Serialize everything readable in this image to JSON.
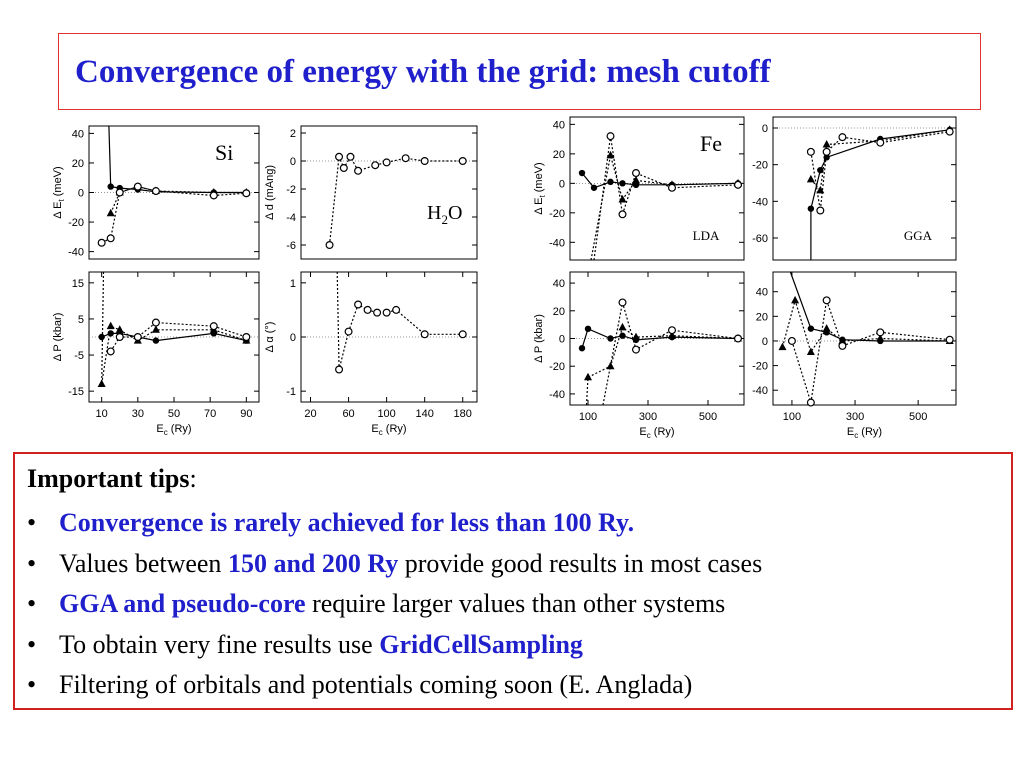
{
  "title": "Convergence of energy with the grid: mesh cutoff",
  "figure": {
    "panels": [
      {
        "id": "si-energy",
        "tag": "Si",
        "ylabel": "Δ E_t (meV)",
        "xlabel": "",
        "ylim": [
          -45,
          45
        ],
        "yticks": [
          -40,
          -20,
          0,
          20,
          40
        ],
        "xlim": [
          3,
          97
        ],
        "xticks": [],
        "series": [
          {
            "style": "solid-dot",
            "x": [
              15,
              20,
              30,
              40,
              72,
              90
            ],
            "y": [
              4,
              3,
              2,
              0.5,
              0,
              0
            ],
            "pre": [
              [
                14,
                45
              ]
            ]
          },
          {
            "style": "dotted-triangle",
            "x": [
              15,
              20,
              30,
              40,
              72,
              90
            ],
            "y": [
              -14,
              0,
              4,
              1,
              0,
              0
            ]
          },
          {
            "style": "dotted-circle",
            "x": [
              10,
              15,
              20,
              30,
              40,
              72,
              90
            ],
            "y": [
              -34,
              -31,
              0,
              4,
              1,
              -2,
              -0.5
            ]
          }
        ]
      },
      {
        "id": "h2o-distance",
        "tag": "H2O",
        "ylabel": "Δ d (mAng)",
        "xlabel": "",
        "ylim": [
          -7,
          2.5
        ],
        "yticks": [
          -6,
          -4,
          -2,
          0,
          2
        ],
        "xlim": [
          10,
          195
        ],
        "xticks": [],
        "series": [
          {
            "style": "dotted-circle",
            "x": [
              40,
              50,
              55,
              62,
              70,
              88,
              100,
              120,
              140,
              180
            ],
            "y": [
              -6,
              0.3,
              -0.5,
              0.3,
              -0.7,
              -0.3,
              -0.1,
              0.2,
              0,
              0
            ]
          }
        ]
      },
      {
        "id": "si-pressure",
        "tag": "",
        "ylabel": "Δ P (kbar)",
        "xlabel": "E_c (Ry)",
        "ylim": [
          -18,
          18
        ],
        "yticks": [
          -15,
          -5,
          5,
          15
        ],
        "xlim": [
          3,
          97
        ],
        "xticks": [
          10,
          30,
          50,
          70,
          90
        ],
        "series": [
          {
            "style": "solid-dot",
            "x": [
              10,
              15,
              20,
              30,
              40,
              72,
              90
            ],
            "y": [
              0,
              1,
              1,
              0,
              -1,
              1,
              -1
            ]
          },
          {
            "style": "dotted-triangle",
            "x": [
              10,
              15,
              20,
              30,
              40,
              72,
              90
            ],
            "y": [
              -13,
              3,
              2,
              -1,
              2,
              2,
              -1
            ],
            "pre": [
              [
                11,
                18
              ]
            ]
          },
          {
            "style": "dotted-circle",
            "x": [
              15,
              20,
              30,
              40,
              72,
              90
            ],
            "y": [
              -4,
              0,
              0,
              4,
              3,
              0
            ]
          }
        ]
      },
      {
        "id": "h2o-angle",
        "tag": "",
        "ylabel": "Δ α (°)",
        "xlabel": "E_c (Ry)",
        "ylim": [
          -1.2,
          1.2
        ],
        "yticks": [
          -1,
          0,
          1
        ],
        "xlim": [
          10,
          195
        ],
        "xticks": [
          20,
          60,
          100,
          140,
          180
        ],
        "series": [
          {
            "style": "dotted-circle",
            "x": [
              50,
              60,
              70,
              80,
              90,
              100,
              110,
              140,
              180
            ],
            "y": [
              -0.6,
              0.1,
              0.6,
              0.5,
              0.45,
              0.45,
              0.5,
              0.05,
              0.05
            ],
            "pre": [
              [
                48,
                1.2
              ]
            ]
          }
        ]
      },
      {
        "id": "fe-lda-energy",
        "tag": "Fe",
        "sub": "LDA",
        "ylabel": "Δ E_t (meV)",
        "xlabel": "",
        "ylim": [
          -52,
          45
        ],
        "yticks": [
          -40,
          -20,
          0,
          20,
          40
        ],
        "xlim": [
          40,
          620
        ],
        "xticks": [],
        "series": [
          {
            "style": "solid-dot",
            "x": [
              80,
              120,
              175,
              215,
              260,
              380,
              600
            ],
            "y": [
              7,
              -3,
              1,
              0,
              -1,
              -1,
              0
            ]
          },
          {
            "style": "dotted-triangle",
            "x": [
              175,
              215,
              260,
              380,
              600
            ],
            "y": [
              19,
              -11,
              2,
              -1,
              0
            ],
            "pre": [
              [
                110,
                -52
              ]
            ]
          },
          {
            "style": "dotted-circle",
            "x": [
              175,
              215,
              260,
              380,
              600
            ],
            "y": [
              32,
              -21,
              7,
              -3,
              -1
            ],
            "pre": [
              [
                120,
                -52
              ]
            ]
          }
        ]
      },
      {
        "id": "fe-gga-energy",
        "tag": "",
        "sub": "GGA",
        "ylabel": "",
        "xlabel": "",
        "ylim": [
          -72,
          6
        ],
        "yticks": [
          -60,
          -40,
          -20,
          0
        ],
        "xlim": [
          40,
          620
        ],
        "xticks": [],
        "series": [
          {
            "style": "solid-dot",
            "x": [
              160,
              190,
              210,
              380,
              600
            ],
            "y": [
              -44,
              -23,
              -16,
              -6,
              -1
            ],
            "pre": [
              [
                160,
                -72
              ]
            ]
          },
          {
            "style": "dotted-triangle",
            "x": [
              160,
              190,
              210,
              380,
              600
            ],
            "y": [
              -28,
              -34,
              -9,
              -7,
              -1
            ]
          },
          {
            "style": "dotted-circle",
            "x": [
              160,
              190,
              210,
              260,
              380,
              600
            ],
            "y": [
              -13,
              -45,
              -13,
              -5,
              -8,
              -2
            ]
          }
        ]
      },
      {
        "id": "fe-lda-pressure",
        "tag": "",
        "ylabel": "Δ P (kbar)",
        "xlabel": "E_c (Ry)",
        "ylim": [
          -48,
          48
        ],
        "yticks": [
          -40,
          -20,
          0,
          20,
          40
        ],
        "xlim": [
          40,
          620
        ],
        "xticks": [
          100,
          300,
          500
        ],
        "series": [
          {
            "style": "solid-dot",
            "x": [
              80,
              100,
              175,
              215,
              260,
              380,
              600
            ],
            "y": [
              -7,
              7,
              0,
              2,
              -1,
              1,
              0
            ]
          },
          {
            "style": "dotted-triangle",
            "x": [
              100,
              175,
              215,
              260,
              380,
              600
            ],
            "y": [
              -28,
              -20,
              8,
              1,
              2,
              0
            ],
            "pre": [
              [
                95,
                -48
              ]
            ]
          },
          {
            "style": "dotted-circle",
            "x": [
              215,
              260,
              380,
              600
            ],
            "y": [
              26,
              -8,
              6,
              0
            ],
            "pre": [
              [
                150,
                -48
              ]
            ]
          }
        ]
      },
      {
        "id": "fe-gga-pressure",
        "tag": "",
        "ylabel": "",
        "xlabel": "E_c (Ry)",
        "ylim": [
          -52,
          56
        ],
        "yticks": [
          -40,
          -20,
          0,
          20,
          40
        ],
        "xlim": [
          40,
          620
        ],
        "xticks": [
          100,
          300,
          500
        ],
        "series": [
          {
            "style": "solid-dot",
            "x": [
              160,
              210,
              260,
              380,
              600
            ],
            "y": [
              10,
              7,
              1,
              0,
              0
            ],
            "pre": [
              [
                95,
                56
              ]
            ]
          },
          {
            "style": "dotted-triangle",
            "x": [
              70,
              110,
              160,
              210,
              260,
              380,
              600
            ],
            "y": [
              -5,
              33,
              -9,
              10,
              0,
              2,
              0
            ]
          },
          {
            "style": "dotted-circle",
            "x": [
              100,
              160,
              210,
              260,
              380,
              600
            ],
            "y": [
              0,
              -50,
              33,
              -4,
              7,
              1
            ]
          }
        ]
      }
    ]
  },
  "tips": {
    "heading": "Important tips",
    "heading_suffix": ":",
    "bullet": "•",
    "items": [
      {
        "segments": [
          {
            "text": "Convergence is rarely achieved for less than 100 Ry.",
            "hl": true
          }
        ]
      },
      {
        "segments": [
          {
            "text": "Values between ",
            "hl": false
          },
          {
            "text": "150 and 200 Ry",
            "hl": true
          },
          {
            "text": " provide good results in most cases",
            "hl": false
          }
        ]
      },
      {
        "segments": [
          {
            "text": "GGA and pseudo-core",
            "hl": true
          },
          {
            "text": " require larger values than other systems",
            "hl": false
          }
        ]
      },
      {
        "segments": [
          {
            "text": "To obtain very fine results use ",
            "hl": false
          },
          {
            "text": "GridCellSampling",
            "hl": true
          }
        ]
      },
      {
        "segments": [
          {
            "text": "Filtering of orbitals and potentials coming soon (E. Anglada)",
            "hl": false
          }
        ]
      }
    ]
  },
  "colors": {
    "title": "#1f1fcc",
    "frame": "#e03030",
    "highlight": "#1f1fcc"
  }
}
